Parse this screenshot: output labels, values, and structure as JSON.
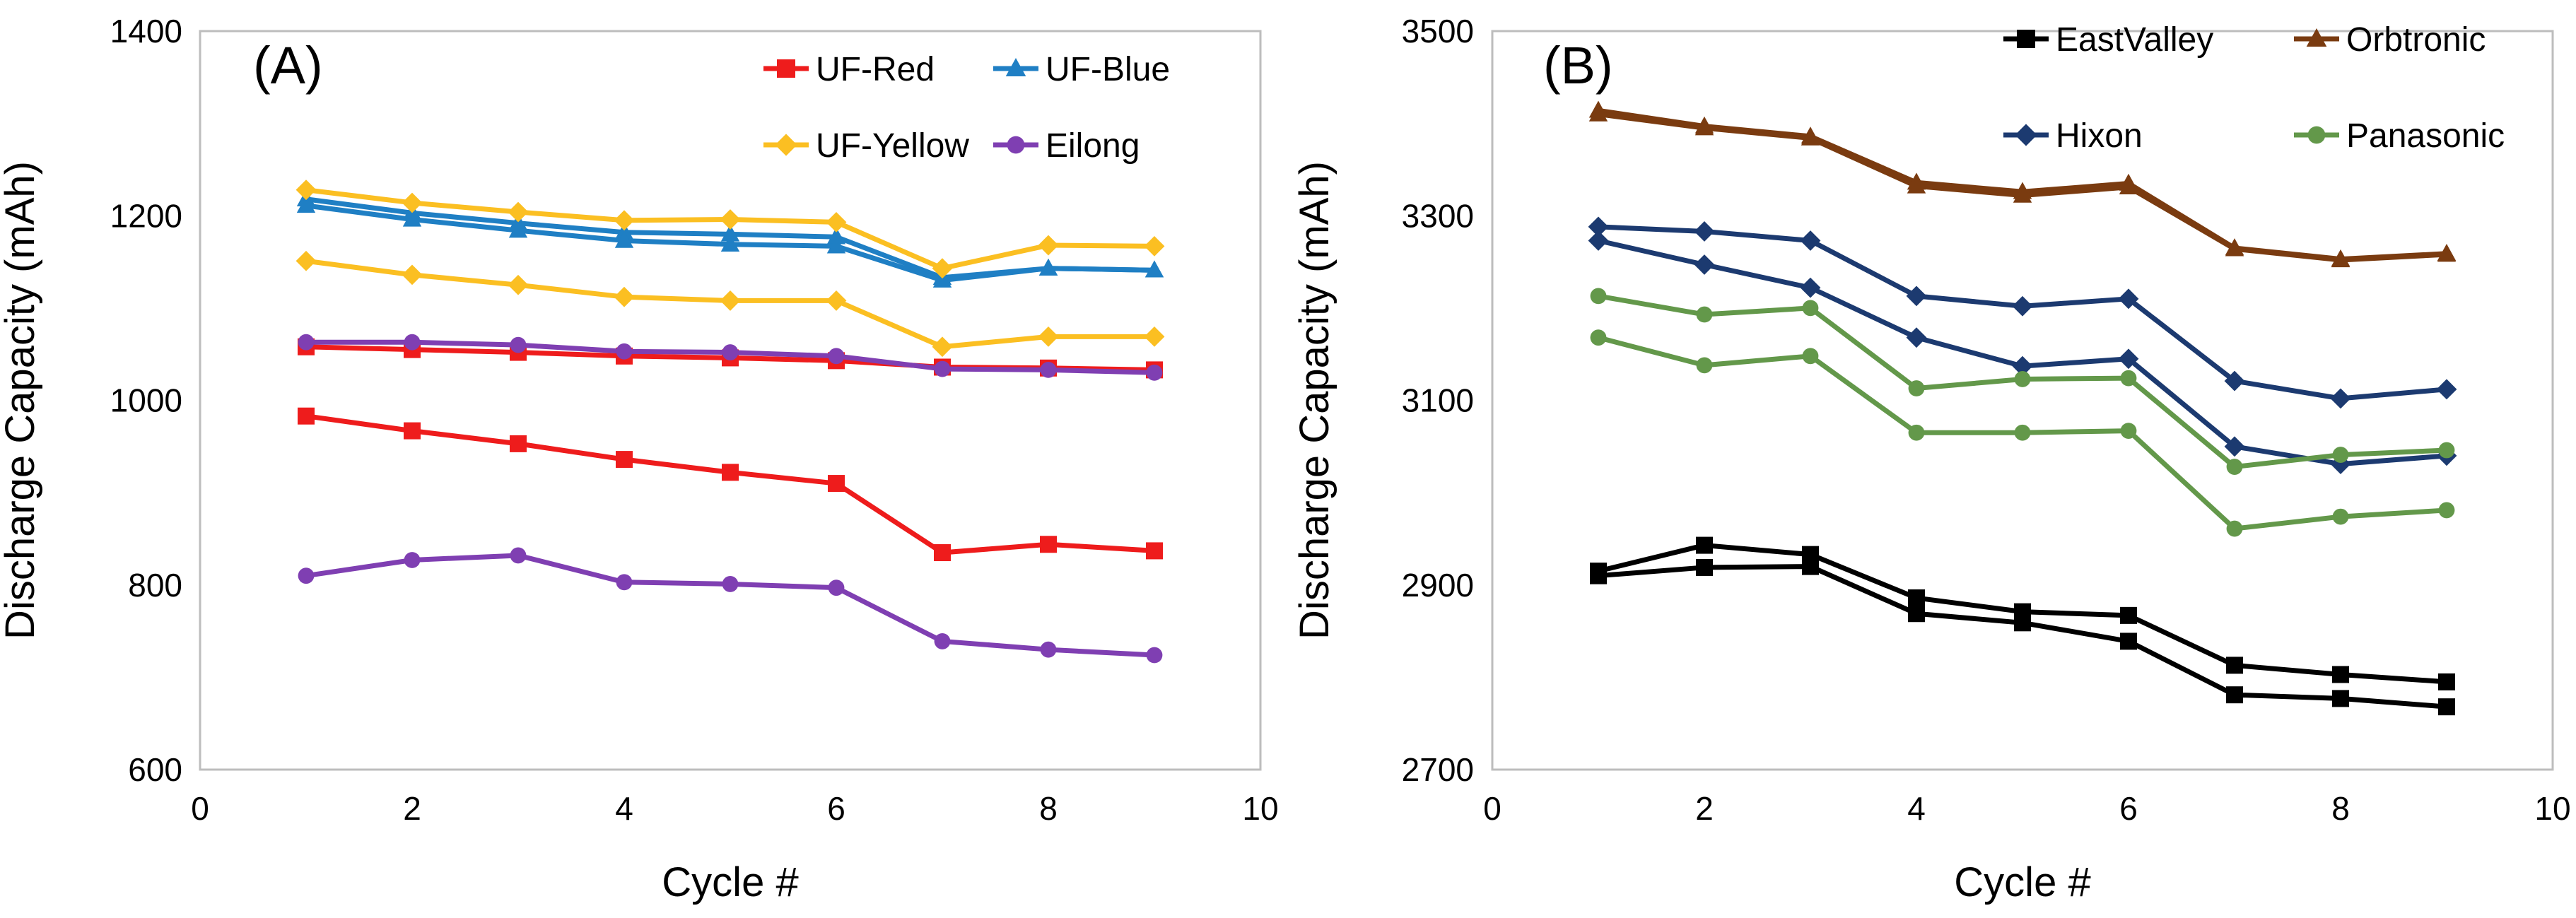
{
  "chart_data": [
    {
      "type": "line",
      "panel_label": "(A)",
      "title": "",
      "xlabel": "Cycle #",
      "ylabel": "Discharge Capacity (mAh)",
      "xlim": [
        0,
        10
      ],
      "ylim": [
        600,
        1400
      ],
      "xticks": [
        0,
        2,
        4,
        6,
        8,
        10
      ],
      "yticks": [
        600,
        800,
        1000,
        1200,
        1400
      ],
      "grid": false,
      "legend_position": "top-right",
      "x": [
        1,
        2,
        3,
        4,
        5,
        6,
        7,
        8,
        9
      ],
      "series": [
        {
          "name": "UF-Red",
          "color": "#ee1c1c",
          "marker": "square",
          "lines": [
            [
              1058,
              1055,
              1052,
              1048,
              1046,
              1043,
              1036,
              1035,
              1033
            ],
            [
              983,
              967,
              953,
              936,
              922,
              910,
              835,
              844,
              837
            ]
          ]
        },
        {
          "name": "UF-Blue",
          "color": "#1f7fc4",
          "marker": "triangle",
          "lines": [
            [
              1218,
              1203,
              1192,
              1182,
              1180,
              1177,
              1133,
              1143,
              1141
            ],
            [
              1211,
              1196,
              1184,
              1173,
              1169,
              1167,
              1130,
              1143,
              1141
            ]
          ]
        },
        {
          "name": "UF-Yellow",
          "color": "#fbbf22",
          "marker": "diamond",
          "lines": [
            [
              1228,
              1214,
              1204,
              1195,
              1196,
              1193,
              1143,
              1168,
              1167
            ],
            [
              1151,
              1136,
              1125,
              1112,
              1108,
              1108,
              1058,
              1069,
              1069
            ]
          ]
        },
        {
          "name": "Eilong",
          "color": "#7f3fb2",
          "marker": "circle",
          "lines": [
            [
              1063,
              1063,
              1060,
              1053,
              1052,
              1048,
              1034,
              1033,
              1030
            ],
            [
              810,
              827,
              832,
              803,
              801,
              797,
              739,
              730,
              724
            ]
          ]
        }
      ]
    },
    {
      "type": "line",
      "panel_label": "(B)",
      "title": "",
      "xlabel": "Cycle #",
      "ylabel": "Discharge Capacity (mAh)",
      "xlim": [
        0,
        10
      ],
      "ylim": [
        2700,
        3500
      ],
      "xticks": [
        0,
        2,
        4,
        6,
        8,
        10
      ],
      "yticks": [
        2700,
        2900,
        3100,
        3300,
        3500
      ],
      "grid": false,
      "legend_position": "top-right",
      "x": [
        1,
        2,
        3,
        4,
        5,
        6,
        7,
        8,
        9
      ],
      "series": [
        {
          "name": "EastValley",
          "color": "#000000",
          "marker": "square",
          "lines": [
            [
              2915,
              2943,
              2933,
              2886,
              2871,
              2867,
              2813,
              2803,
              2795
            ],
            [
              2910,
              2919,
              2920,
              2869,
              2859,
              2839,
              2781,
              2777,
              2768
            ]
          ]
        },
        {
          "name": "Orbtronic",
          "color": "#7a3b10",
          "marker": "triangle",
          "lines": [
            [
              3414,
              3397,
              3386,
              3336,
              3326,
              3335,
              3265,
              3253,
              3259
            ],
            [
              3410,
              3395,
              3384,
              3332,
              3322,
              3331,
              3264,
              3252,
              3258
            ]
          ]
        },
        {
          "name": "Hixon",
          "color": "#1c3a70",
          "marker": "diamond",
          "lines": [
            [
              3288,
              3283,
              3273,
              3213,
              3202,
              3210,
              3121,
              3102,
              3112
            ],
            [
              3273,
              3247,
              3222,
              3168,
              3137,
              3145,
              3050,
              3031,
              3040
            ]
          ]
        },
        {
          "name": "Panasonic",
          "color": "#63984a",
          "marker": "circle",
          "lines": [
            [
              3213,
              3193,
              3200,
              3113,
              3123,
              3124,
              3028,
              3041,
              3046
            ],
            [
              3168,
              3138,
              3148,
              3065,
              3065,
              3067,
              2961,
              2974,
              2981
            ]
          ]
        }
      ]
    }
  ]
}
